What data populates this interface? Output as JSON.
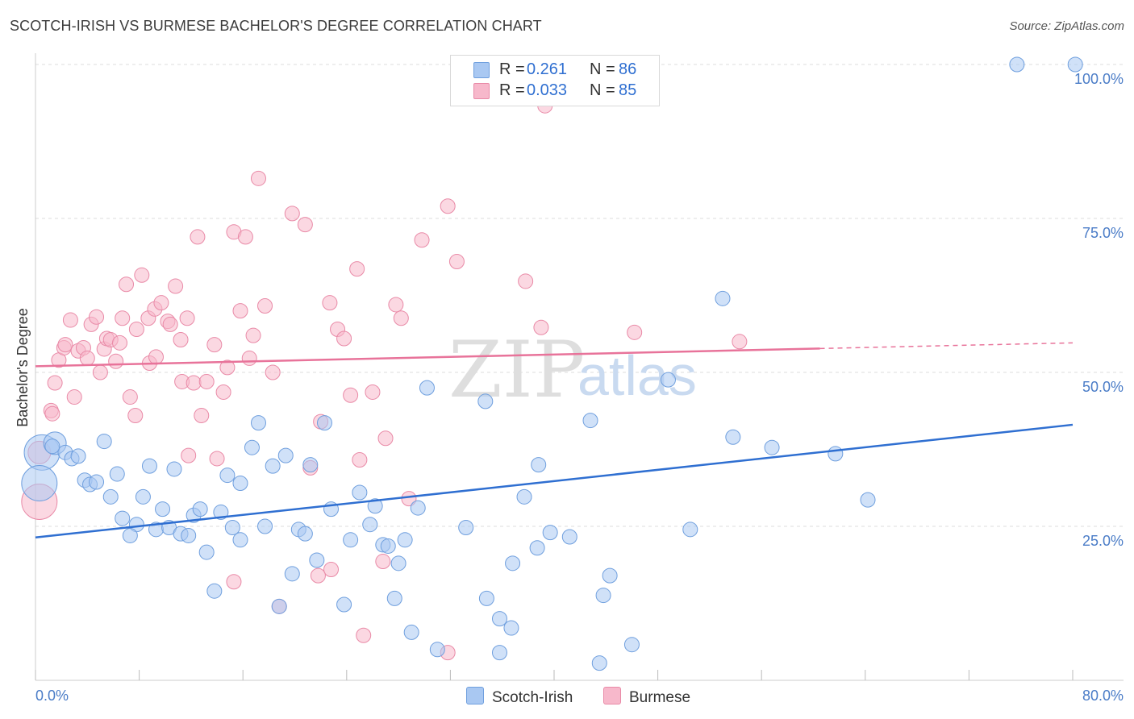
{
  "title": "SCOTCH-IRISH VS BURMESE BACHELOR'S DEGREE CORRELATION CHART",
  "source": "Source: ZipAtlas.com",
  "watermark": {
    "part1": "ZIP",
    "part2": "atlas"
  },
  "legend": {
    "rows": [
      {
        "r_label": "R =",
        "r_value": "0.261",
        "n_label": "N =",
        "n_value": "86"
      },
      {
        "r_label": "R =",
        "r_value": "0.033",
        "n_label": "N =",
        "n_value": "85"
      }
    ]
  },
  "bottom_legend": {
    "series1": "Scotch-Irish",
    "series2": "Burmese"
  },
  "colors": {
    "scotch_irish_fill": "#a9c8f2",
    "scotch_irish_stroke": "#6f9fde",
    "scotch_irish_line": "#2f6fd1",
    "burmese_fill": "#f7b8cb",
    "burmese_stroke": "#e98aa7",
    "burmese_line": "#e8739a",
    "tick_label": "#4a7cc7",
    "grid": "#dddddd"
  },
  "chart_data": {
    "type": "scatter",
    "title": "SCOTCH-IRISH VS BURMESE BACHELOR'S DEGREE CORRELATION CHART",
    "xlabel": "",
    "ylabel": "Bachelor's Degree",
    "xlim": [
      0,
      80
    ],
    "ylim": [
      0,
      100
    ],
    "x_tick_labels": [
      "0.0%",
      "80.0%"
    ],
    "y_ticks": [
      25,
      50,
      75,
      100
    ],
    "y_tick_labels": [
      "25.0%",
      "50.0%",
      "75.0%",
      "100.0%"
    ],
    "grid": true,
    "series": [
      {
        "name": "Scotch-Irish",
        "trend": {
          "x": [
            0,
            80
          ],
          "y": [
            23.2,
            41.5
          ],
          "solid_to": 80
        },
        "points": [
          [
            0.5,
            37,
            3
          ],
          [
            0.3,
            32,
            3
          ],
          [
            1.5,
            38.5,
            2
          ],
          [
            2.3,
            37,
            1
          ],
          [
            1.3,
            38,
            1
          ],
          [
            2.8,
            36,
            1
          ],
          [
            3.3,
            36.4,
            1
          ],
          [
            5.3,
            38.8,
            1
          ],
          [
            3.8,
            32.5,
            1
          ],
          [
            4.2,
            31.8,
            1
          ],
          [
            4.7,
            32.2,
            1
          ],
          [
            6.3,
            33.5,
            1
          ],
          [
            8.8,
            34.8,
            1
          ],
          [
            10.7,
            34.3,
            1
          ],
          [
            5.8,
            29.8,
            1
          ],
          [
            8.3,
            29.8,
            1
          ],
          [
            6.7,
            26.3,
            1
          ],
          [
            7.8,
            25.3,
            1
          ],
          [
            7.3,
            23.5,
            1
          ],
          [
            9.3,
            24.5,
            1
          ],
          [
            9.8,
            27.8,
            1
          ],
          [
            10.3,
            24.8,
            1
          ],
          [
            11.2,
            23.8,
            1
          ],
          [
            11.8,
            23.5,
            1
          ],
          [
            12.2,
            26.8,
            1
          ],
          [
            12.7,
            27.8,
            1
          ],
          [
            14.3,
            27.3,
            1
          ],
          [
            13.2,
            20.8,
            1
          ],
          [
            13.8,
            14.5,
            1
          ],
          [
            15.2,
            24.8,
            1
          ],
          [
            15.8,
            22.8,
            1
          ],
          [
            14.8,
            33.3,
            1
          ],
          [
            15.8,
            32.0,
            1
          ],
          [
            16.7,
            37.8,
            1
          ],
          [
            17.2,
            41.8,
            1
          ],
          [
            17.7,
            25.0,
            1
          ],
          [
            18.3,
            34.8,
            1
          ],
          [
            19.3,
            36.5,
            1
          ],
          [
            19.8,
            17.3,
            1
          ],
          [
            18.8,
            12.0,
            1
          ],
          [
            20.3,
            24.5,
            1
          ],
          [
            20.8,
            23.8,
            1
          ],
          [
            21.2,
            35.0,
            1
          ],
          [
            21.7,
            19.5,
            1
          ],
          [
            22.3,
            41.8,
            1
          ],
          [
            22.8,
            27.8,
            1
          ],
          [
            23.8,
            12.3,
            1
          ],
          [
            24.3,
            22.8,
            1
          ],
          [
            25.0,
            30.5,
            1
          ],
          [
            25.8,
            25.3,
            1
          ],
          [
            26.2,
            28.3,
            1
          ],
          [
            26.8,
            22.0,
            1
          ],
          [
            27.2,
            21.8,
            1
          ],
          [
            27.7,
            13.3,
            1
          ],
          [
            28.0,
            19.0,
            1
          ],
          [
            28.5,
            22.8,
            1
          ],
          [
            29.0,
            7.8,
            1
          ],
          [
            29.5,
            28.0,
            1
          ],
          [
            30.2,
            47.5,
            1
          ],
          [
            31.0,
            5.0,
            1
          ],
          [
            33.2,
            24.8,
            1
          ],
          [
            34.7,
            45.3,
            1
          ],
          [
            34.8,
            13.3,
            1
          ],
          [
            35.8,
            10.0,
            1
          ],
          [
            36.7,
            8.5,
            1
          ],
          [
            35.8,
            4.5,
            1
          ],
          [
            36.8,
            19.0,
            1
          ],
          [
            37.7,
            29.8,
            1
          ],
          [
            38.7,
            21.5,
            1
          ],
          [
            38.8,
            35.0,
            1
          ],
          [
            39.7,
            24.0,
            1
          ],
          [
            41.2,
            23.3,
            1
          ],
          [
            42.8,
            42.2,
            1
          ],
          [
            43.5,
            2.8,
            1
          ],
          [
            43.8,
            13.8,
            1
          ],
          [
            44.3,
            17.0,
            1
          ],
          [
            46.0,
            5.8,
            1
          ],
          [
            48.8,
            48.8,
            1
          ],
          [
            50.5,
            24.5,
            1
          ],
          [
            53.0,
            62.0,
            1
          ],
          [
            53.8,
            39.5,
            1
          ],
          [
            56.8,
            37.8,
            1
          ],
          [
            61.7,
            36.8,
            1
          ],
          [
            64.2,
            29.3,
            1
          ],
          [
            75.7,
            100,
            1
          ],
          [
            80.2,
            100,
            1
          ]
        ]
      },
      {
        "name": "Burmese",
        "trend": {
          "x": [
            0,
            80
          ],
          "y": [
            51.0,
            54.8
          ],
          "solid_to": 60.5
        },
        "points": [
          [
            0.3,
            29,
            3
          ],
          [
            0.3,
            37,
            2
          ],
          [
            1.2,
            43.8,
            1
          ],
          [
            1.3,
            43.3,
            1
          ],
          [
            1.5,
            48.3,
            1
          ],
          [
            1.8,
            52.0,
            1
          ],
          [
            2.2,
            54.0,
            1
          ],
          [
            2.3,
            54.5,
            1
          ],
          [
            2.7,
            58.5,
            1
          ],
          [
            3.0,
            46.0,
            1
          ],
          [
            3.3,
            53.5,
            1
          ],
          [
            3.7,
            54.0,
            1
          ],
          [
            4.0,
            52.3,
            1
          ],
          [
            4.3,
            57.8,
            1
          ],
          [
            4.7,
            59.0,
            1
          ],
          [
            5.0,
            50.0,
            1
          ],
          [
            5.3,
            53.8,
            1
          ],
          [
            5.5,
            55.5,
            1
          ],
          [
            5.8,
            55.3,
            1
          ],
          [
            6.2,
            51.8,
            1
          ],
          [
            6.5,
            54.8,
            1
          ],
          [
            6.7,
            58.8,
            1
          ],
          [
            7.0,
            64.3,
            1
          ],
          [
            7.3,
            46.0,
            1
          ],
          [
            7.7,
            43.0,
            1
          ],
          [
            7.8,
            57.0,
            1
          ],
          [
            8.2,
            65.8,
            1
          ],
          [
            8.7,
            58.8,
            1
          ],
          [
            8.8,
            51.5,
            1
          ],
          [
            9.2,
            60.3,
            1
          ],
          [
            9.3,
            52.5,
            1
          ],
          [
            9.7,
            61.3,
            1
          ],
          [
            10.2,
            58.3,
            1
          ],
          [
            10.4,
            57.8,
            1
          ],
          [
            10.8,
            64.0,
            1
          ],
          [
            11.2,
            55.3,
            1
          ],
          [
            11.3,
            48.5,
            1
          ],
          [
            11.7,
            58.8,
            1
          ],
          [
            11.8,
            36.5,
            1
          ],
          [
            12.2,
            48.3,
            1
          ],
          [
            12.5,
            72.0,
            1
          ],
          [
            12.8,
            43.0,
            1
          ],
          [
            13.2,
            48.5,
            1
          ],
          [
            13.8,
            54.5,
            1
          ],
          [
            14.0,
            36.0,
            1
          ],
          [
            14.5,
            46.8,
            1
          ],
          [
            14.8,
            50.8,
            1
          ],
          [
            15.3,
            72.8,
            1
          ],
          [
            15.3,
            16.0,
            1
          ],
          [
            15.8,
            60.0,
            1
          ],
          [
            16.2,
            72.0,
            1
          ],
          [
            16.5,
            52.3,
            1
          ],
          [
            16.8,
            56.0,
            1
          ],
          [
            17.2,
            81.5,
            1
          ],
          [
            17.7,
            60.8,
            1
          ],
          [
            18.3,
            50.0,
            1
          ],
          [
            18.8,
            12.0,
            1
          ],
          [
            19.8,
            75.8,
            1
          ],
          [
            20.8,
            74.0,
            1
          ],
          [
            21.2,
            34.5,
            1
          ],
          [
            21.8,
            17.0,
            1
          ],
          [
            22.0,
            42.0,
            1
          ],
          [
            22.7,
            61.3,
            1
          ],
          [
            22.8,
            18.0,
            1
          ],
          [
            23.3,
            57.0,
            1
          ],
          [
            23.8,
            55.5,
            1
          ],
          [
            24.3,
            46.3,
            1
          ],
          [
            24.8,
            66.8,
            1
          ],
          [
            25.0,
            35.8,
            1
          ],
          [
            25.3,
            7.3,
            1
          ],
          [
            26.0,
            46.8,
            1
          ],
          [
            26.8,
            19.3,
            1
          ],
          [
            27.0,
            39.3,
            1
          ],
          [
            27.8,
            61.0,
            1
          ],
          [
            28.2,
            58.8,
            1
          ],
          [
            28.8,
            29.5,
            1
          ],
          [
            29.8,
            71.5,
            1
          ],
          [
            31.8,
            4.5,
            1
          ],
          [
            31.8,
            77.0,
            1
          ],
          [
            32.5,
            68.0,
            1
          ],
          [
            37.8,
            64.8,
            1
          ],
          [
            39.3,
            93.3,
            1
          ],
          [
            39.0,
            57.3,
            1
          ],
          [
            46.2,
            56.5,
            1
          ],
          [
            54.3,
            55.0,
            1
          ]
        ]
      }
    ]
  }
}
